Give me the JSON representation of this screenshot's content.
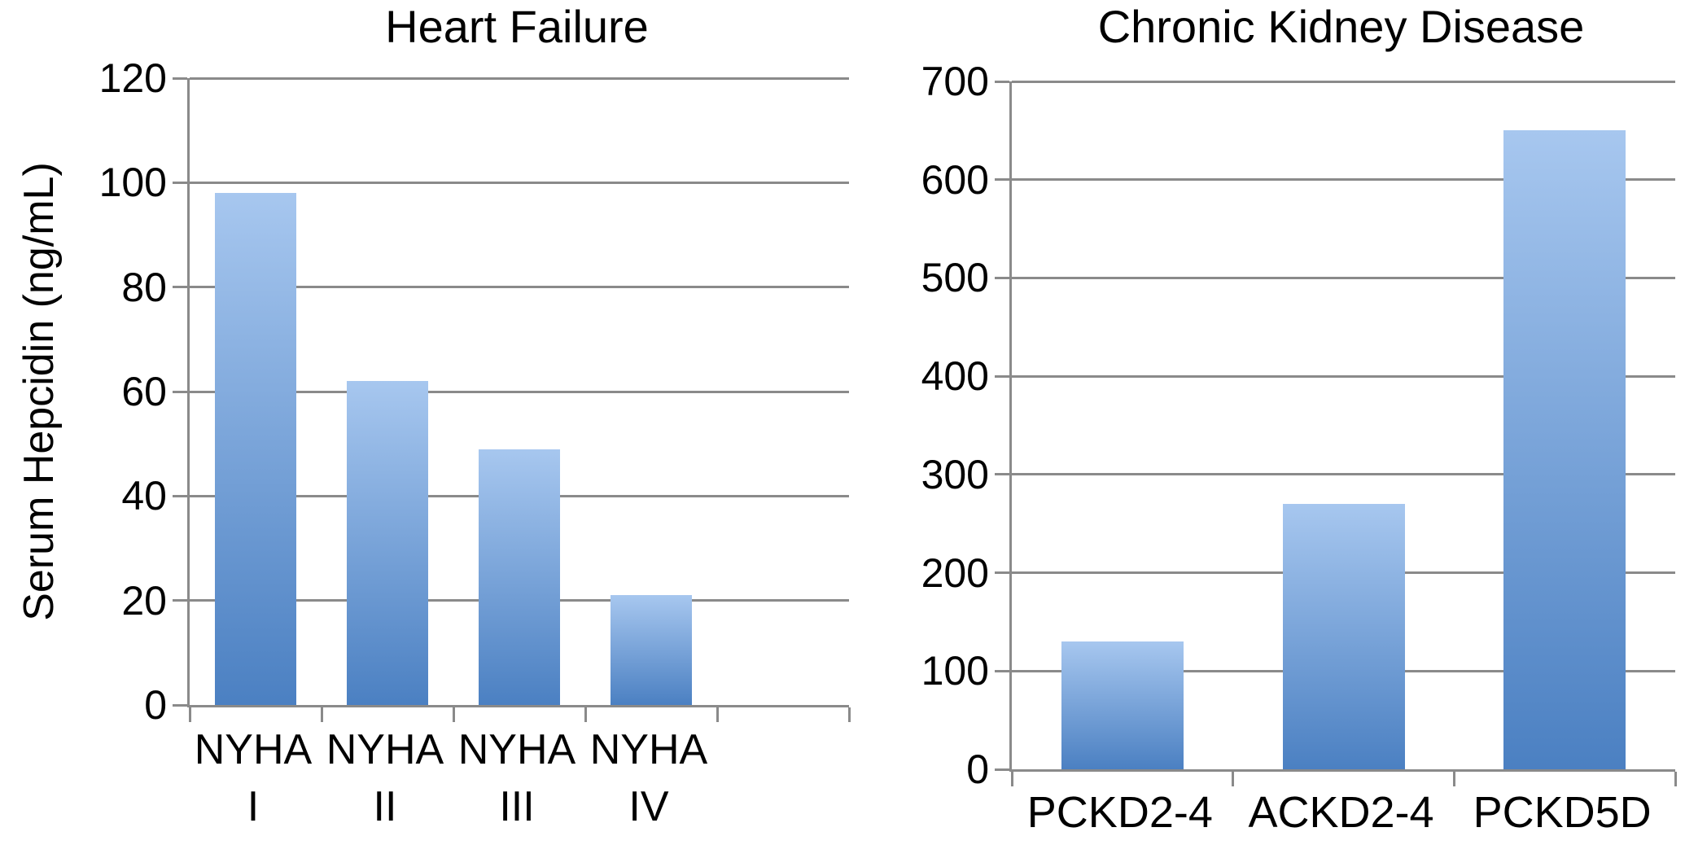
{
  "figure": {
    "background": "#ffffff",
    "grid_color": "#8a8a8a",
    "bar_gradient_top": "#a7c7ef",
    "bar_gradient_bottom": "#4b80c2",
    "text_color": "#000000"
  },
  "chart_data": [
    {
      "type": "bar",
      "title": "Heart Failure",
      "ylabel": "Serum Hepcidin (ng/mL)",
      "xlabel": "",
      "categories": [
        "NYHA I",
        "NYHA II",
        "NYHA III",
        "NYHA IV"
      ],
      "category_lines": [
        [
          "NYHA",
          "I"
        ],
        [
          "NYHA",
          "II"
        ],
        [
          "NYHA",
          "III"
        ],
        [
          "NYHA",
          "IV"
        ]
      ],
      "values": [
        98,
        62,
        49,
        21
      ],
      "ylim": [
        0,
        120
      ],
      "ytick_step": 20,
      "slots": 5,
      "grid": true,
      "legend": "none"
    },
    {
      "type": "bar",
      "title": "Chronic Kidney Disease",
      "ylabel": "",
      "xlabel": "",
      "categories": [
        "PCKD2-4",
        "ACKD2-4",
        "PCKD5D"
      ],
      "category_lines": [
        [
          "PCKD2-4"
        ],
        [
          "ACKD2-4"
        ],
        [
          "PCKD5D"
        ]
      ],
      "values": [
        130,
        270,
        650
      ],
      "ylim": [
        0,
        700
      ],
      "ytick_step": 100,
      "slots": 3,
      "grid": true,
      "legend": "none"
    }
  ]
}
